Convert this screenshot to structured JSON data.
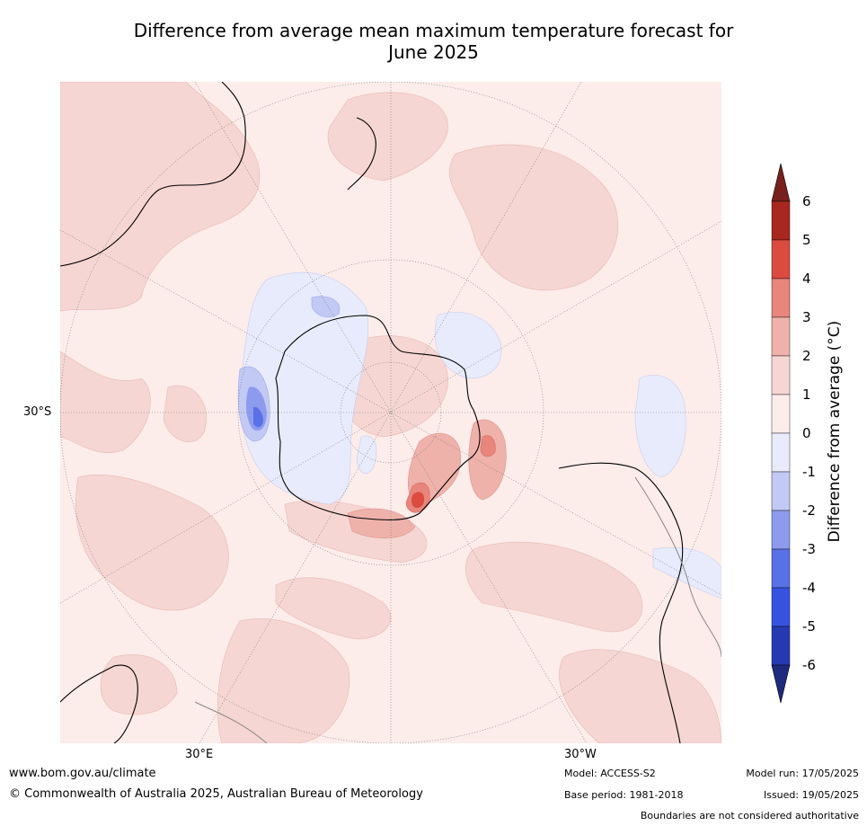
{
  "title": {
    "line1": "Difference from average mean maximum temperature forecast for",
    "line2": "June 2025"
  },
  "map": {
    "projection": "south-polar stereographic",
    "axis_labels": {
      "left_lat": "30°S",
      "bottom_left_lon": "30°E",
      "bottom_right_lon": "30°W"
    },
    "colors": {
      "background_anomaly": "#fcecea",
      "land_outline": "#000000",
      "boundary": "#888888",
      "graticule": "#777777"
    }
  },
  "colorbar": {
    "label": "Difference from average (°C)",
    "ticks": [
      "6",
      "5",
      "4",
      "3",
      "2",
      "1",
      "0",
      "-1",
      "-2",
      "-3",
      "-4",
      "-5",
      "-6"
    ],
    "bins": [
      {
        "range": "5 to 6",
        "color": "#a8271f"
      },
      {
        "range": "4 to 5",
        "color": "#db4b3f"
      },
      {
        "range": "3 to 4",
        "color": "#e8857c"
      },
      {
        "range": "2 to 3",
        "color": "#eeb2ab"
      },
      {
        "range": "1 to 2",
        "color": "#f5d6d2"
      },
      {
        "range": "0 to 1",
        "color": "#fcecea"
      },
      {
        "range": "-1 to 0",
        "color": "#e8ebfb"
      },
      {
        "range": "-2 to -1",
        "color": "#c2c9f4"
      },
      {
        "range": "-3 to -2",
        "color": "#8d9bee"
      },
      {
        "range": "-4 to -3",
        "color": "#5a70e6"
      },
      {
        "range": "-5 to -4",
        "color": "#3553e0"
      },
      {
        "range": "-6 to -5",
        "color": "#2539b2"
      }
    ],
    "over_color": "#78201b",
    "under_color": "#1e2a7e"
  },
  "footer": {
    "website": "www.bom.gov.au/climate",
    "copyright": "© Commonwealth of Australia 2025, Australian Bureau of Meteorology",
    "model": "Model: ACCESS-S2",
    "base_period": "Base period: 1981-2018",
    "model_run": "Model run: 17/05/2025",
    "issued": "Issued: 19/05/2025",
    "disclaimer": "Boundaries are not considered authoritative"
  }
}
